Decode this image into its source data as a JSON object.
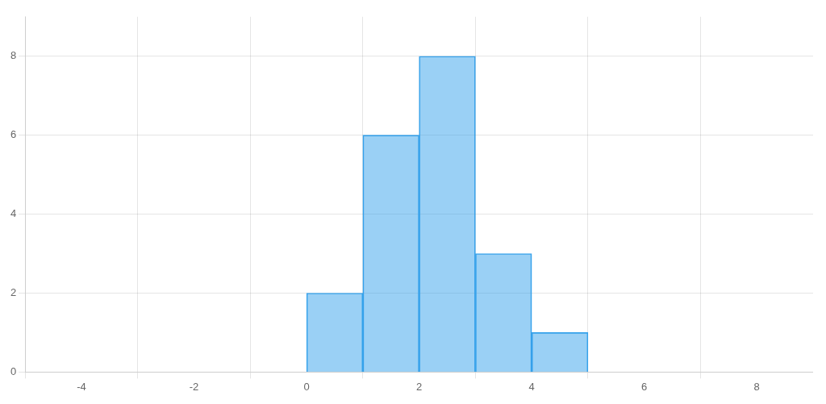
{
  "chart_data": {
    "type": "histogram",
    "bins": [
      0,
      1,
      2,
      3,
      4,
      5
    ],
    "values": [
      2,
      6,
      8,
      3,
      1
    ],
    "xlim": [
      -5,
      9
    ],
    "ylim": [
      0,
      9
    ],
    "xticks": [
      -4,
      -2,
      0,
      2,
      4,
      6,
      8
    ],
    "yticks": [
      0,
      2,
      4,
      6,
      8
    ],
    "grid": true
  }
}
